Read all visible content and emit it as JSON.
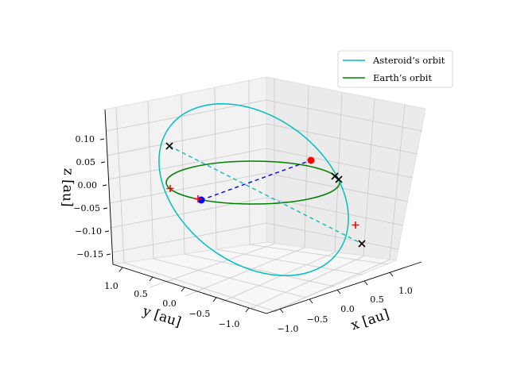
{
  "chart_data": {
    "type": "3d-line",
    "title": "",
    "xlabel": "x [au]",
    "ylabel": "y [au]",
    "zlabel": "z [au]",
    "x_ticks": [
      "−1.0",
      "−0.5",
      "0.0",
      "0.5",
      "1.0"
    ],
    "y_ticks": [
      "−1.0",
      "−0.5",
      "0.0",
      "0.5",
      "1.0"
    ],
    "z_ticks": [
      "−0.15",
      "−0.10",
      "−0.05",
      "0.00",
      "0.05",
      "0.10"
    ],
    "xlim": [
      -1.2,
      1.2
    ],
    "ylim": [
      -1.2,
      1.2
    ],
    "zlim": [
      -0.17,
      0.17
    ],
    "grid": true,
    "legend_position": "top-right",
    "series": [
      {
        "name": "Asteroid’s orbit",
        "type": "ellipse-orbit",
        "color": "#00bfbf",
        "semi_major_axis_au": 1.22,
        "inclination_deg": 7.6
      },
      {
        "name": "Earth’s orbit",
        "type": "circular-orbit",
        "color": "#008000",
        "radius_au": 1.0,
        "z": 0.0
      }
    ],
    "markers": [
      {
        "label": "Earth position",
        "color": "#0000ff",
        "shape": "dot"
      },
      {
        "label": "Asteroid position",
        "color": "#ff0000",
        "shape": "dot"
      },
      {
        "label": "Node",
        "color": "#000000",
        "shape": "x"
      },
      {
        "label": "Node",
        "color": "#000000",
        "shape": "x"
      },
      {
        "label": "Node",
        "color": "#000000",
        "shape": "x"
      },
      {
        "label": "Node",
        "color": "#000000",
        "shape": "x"
      },
      {
        "label": "Crossing",
        "color": "#ff0000",
        "shape": "plus"
      },
      {
        "label": "Crossing",
        "color": "#ff0000",
        "shape": "plus"
      },
      {
        "label": "Crossing",
        "color": "#ff0000",
        "shape": "plus"
      }
    ],
    "lines": [
      {
        "name": "Earth to asteroid",
        "color": "#0000ff",
        "style": "dashed"
      },
      {
        "name": "Line of nodes",
        "color": "#00bfbf",
        "style": "dashed"
      }
    ]
  }
}
